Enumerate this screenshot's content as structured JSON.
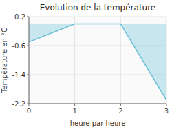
{
  "chart_data": {
    "type": "area",
    "title": "Evolution de la température",
    "xlabel": "heure par heure",
    "ylabel": "Température en °C",
    "x": [
      0,
      1,
      2,
      3
    ],
    "values": [
      -0.5,
      0.0,
      0.0,
      -2.1
    ],
    "color": "#6ac0d8",
    "xlim": [
      0,
      3
    ],
    "ylim": [
      -2.2,
      0.2
    ],
    "xticks": [
      0,
      1,
      2,
      3
    ],
    "yticks": [
      0.2,
      -0.6,
      -1.4,
      -2.2
    ],
    "grid": true
  }
}
